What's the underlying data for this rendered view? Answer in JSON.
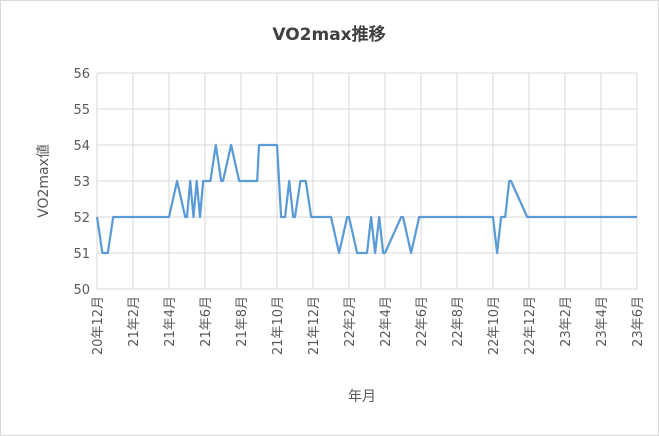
{
  "chart_data": {
    "type": "line",
    "title": "VO2max推移",
    "xlabel": "年月",
    "ylabel": "VO2max値",
    "ylim": [
      50,
      56
    ],
    "yticks": [
      "50",
      "51",
      "52",
      "53",
      "54",
      "55",
      "56"
    ],
    "xtick_labels": [
      "20年12月",
      "21年2月",
      "21年4月",
      "21年6月",
      "21年8月",
      "21年10月",
      "21年12月",
      "22年2月",
      "22年4月",
      "22年6月",
      "22年8月",
      "22年10月",
      "22年12月",
      "23年2月",
      "23年4月",
      "23年6月"
    ],
    "grid": true,
    "legend": "none",
    "series": [
      {
        "color": "#5b9bd5",
        "points": [
          [
            "20年12月",
            52
          ],
          [
            "20年12月",
            51
          ],
          [
            "20年12月",
            51
          ],
          [
            "20年12月",
            52
          ],
          [
            "21年4月",
            52
          ],
          [
            "21年4月",
            53
          ],
          [
            "21年4月",
            52
          ],
          [
            "21年5月",
            52
          ],
          [
            "21年5月",
            53
          ],
          [
            "21年5月",
            52
          ],
          [
            "21年5月",
            53
          ],
          [
            "21年5月",
            52
          ],
          [
            "21年5月",
            53
          ],
          [
            "21年6月",
            53
          ],
          [
            "21年6月",
            53
          ],
          [
            "21年6月",
            54
          ],
          [
            "21年6月",
            53
          ],
          [
            "21年7月",
            53
          ],
          [
            "21年7月",
            54
          ],
          [
            "21年7月",
            53
          ],
          [
            "21年8月",
            53
          ],
          [
            "21年8月",
            53
          ],
          [
            "21年9月",
            54
          ],
          [
            "21年9月",
            54
          ],
          [
            "21年10月",
            54
          ],
          [
            "21年10月",
            52
          ],
          [
            "21年10月",
            52
          ],
          [
            "21年10月",
            53
          ],
          [
            "21年10月",
            52
          ],
          [
            "21年11月",
            52
          ],
          [
            "21年11月",
            53
          ],
          [
            "21年11月",
            53
          ],
          [
            "21年11月",
            52
          ],
          [
            "22年1月",
            52
          ],
          [
            "22年1月",
            51
          ],
          [
            "22年1月",
            52
          ],
          [
            "22年2月",
            52
          ],
          [
            "22年2月",
            51
          ],
          [
            "22年2月",
            51
          ],
          [
            "22年3月",
            51
          ],
          [
            "22年3月",
            52
          ],
          [
            "22年3月",
            51
          ],
          [
            "22年3月",
            52
          ],
          [
            "22年3月",
            51
          ],
          [
            "22年4月",
            51
          ],
          [
            "22年4月",
            52
          ],
          [
            "22年5月",
            52
          ],
          [
            "22年5月",
            51
          ],
          [
            "22年5月",
            52
          ],
          [
            "22年10月",
            52
          ],
          [
            "22年10月",
            51
          ],
          [
            "22年10月",
            52
          ],
          [
            "22年10月",
            52
          ],
          [
            "22年10月",
            53
          ],
          [
            "22年11月",
            53
          ],
          [
            "22年11月",
            52
          ],
          [
            "23年6月",
            52
          ]
        ]
      }
    ]
  }
}
